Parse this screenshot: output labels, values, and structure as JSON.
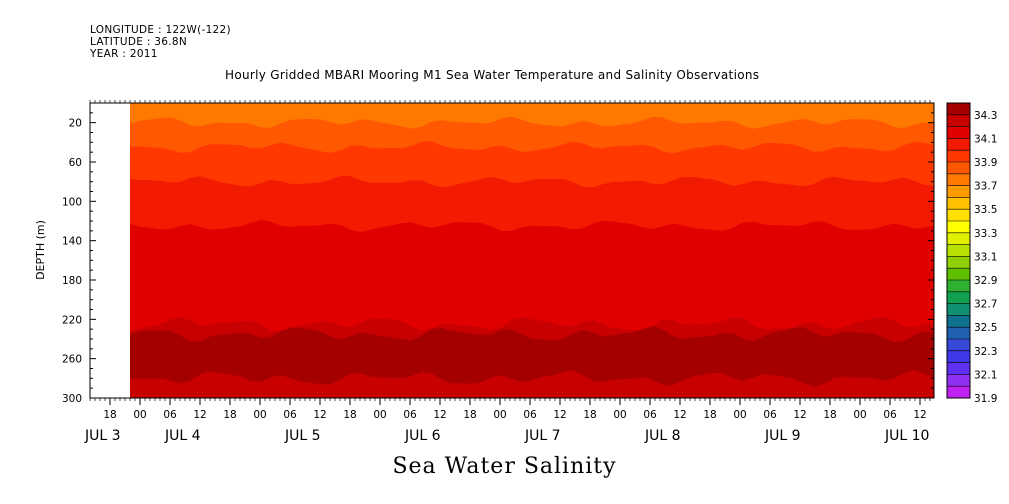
{
  "header": {
    "longitude": "LONGITUDE : 122W(-122)",
    "latitude": "LATITUDE : 36.8N",
    "year": "YEAR : 2011"
  },
  "chart_data": {
    "type": "heatmap",
    "title": "Hourly Gridded MBARI Mooring M1 Sea Water Temperature and Salinity Observations",
    "variable": "Sea Water Salinity",
    "ylabel": "DEPTH (m)",
    "ylim": [
      300,
      0
    ],
    "y_ticks": [
      20,
      60,
      100,
      140,
      180,
      220,
      260,
      300
    ],
    "x_hour_ticks": [
      "18",
      "00",
      "06",
      "12",
      "18",
      "00",
      "06",
      "12",
      "18",
      "00",
      "06",
      "12",
      "18",
      "00",
      "06",
      "12",
      "18",
      "00",
      "06",
      "12",
      "18",
      "00",
      "06",
      "12",
      "18",
      "00",
      "06",
      "12"
    ],
    "x_day_labels": [
      "JUL  3",
      "JUL  4",
      "JUL  5",
      "JUL  6",
      "JUL  7",
      "JUL  8",
      "JUL  9",
      "JUL 10"
    ],
    "colorbar": {
      "levels": [
        34.4,
        34.3,
        34.2,
        34.1,
        34.0,
        33.9,
        33.8,
        33.7,
        33.6,
        33.5,
        33.4,
        33.3,
        33.2,
        33.1,
        33.0,
        32.9,
        32.8,
        32.7,
        32.6,
        32.5,
        32.4,
        32.3,
        32.2,
        32.1,
        32.0,
        31.9
      ],
      "labels": [
        "34.3",
        "34.1",
        "33.9",
        "33.7",
        "33.5",
        "33.3",
        "33.1",
        "32.9",
        "32.7",
        "32.5",
        "32.3",
        "32.1",
        "31.9"
      ],
      "colors": [
        "#a50000",
        "#c80000",
        "#e00000",
        "#f21a00",
        "#ff3800",
        "#ff5800",
        "#ff7800",
        "#ff9a00",
        "#ffc000",
        "#ffe000",
        "#ffff00",
        "#e0f000",
        "#b8e000",
        "#90d000",
        "#60c000",
        "#30b030",
        "#10a050",
        "#109070",
        "#107090",
        "#2060b0",
        "#3848d8",
        "#4038e8",
        "#6030f0",
        "#9030f0",
        "#c020f0"
      ]
    },
    "layers": [
      {
        "depth_range": [
          0,
          20
        ],
        "salinity": 33.7
      },
      {
        "depth_range": [
          20,
          45
        ],
        "salinity": 33.8
      },
      {
        "depth_range": [
          45,
          80
        ],
        "salinity": 33.9
      },
      {
        "depth_range": [
          80,
          125
        ],
        "salinity": 34.0
      },
      {
        "depth_range": [
          125,
          225
        ],
        "salinity": 34.1
      },
      {
        "depth_range": [
          225,
          235
        ],
        "salinity": 34.2
      },
      {
        "depth_range": [
          235,
          280
        ],
        "salinity": 34.3
      },
      {
        "depth_range": [
          280,
          300
        ],
        "salinity": 34.2
      }
    ]
  }
}
